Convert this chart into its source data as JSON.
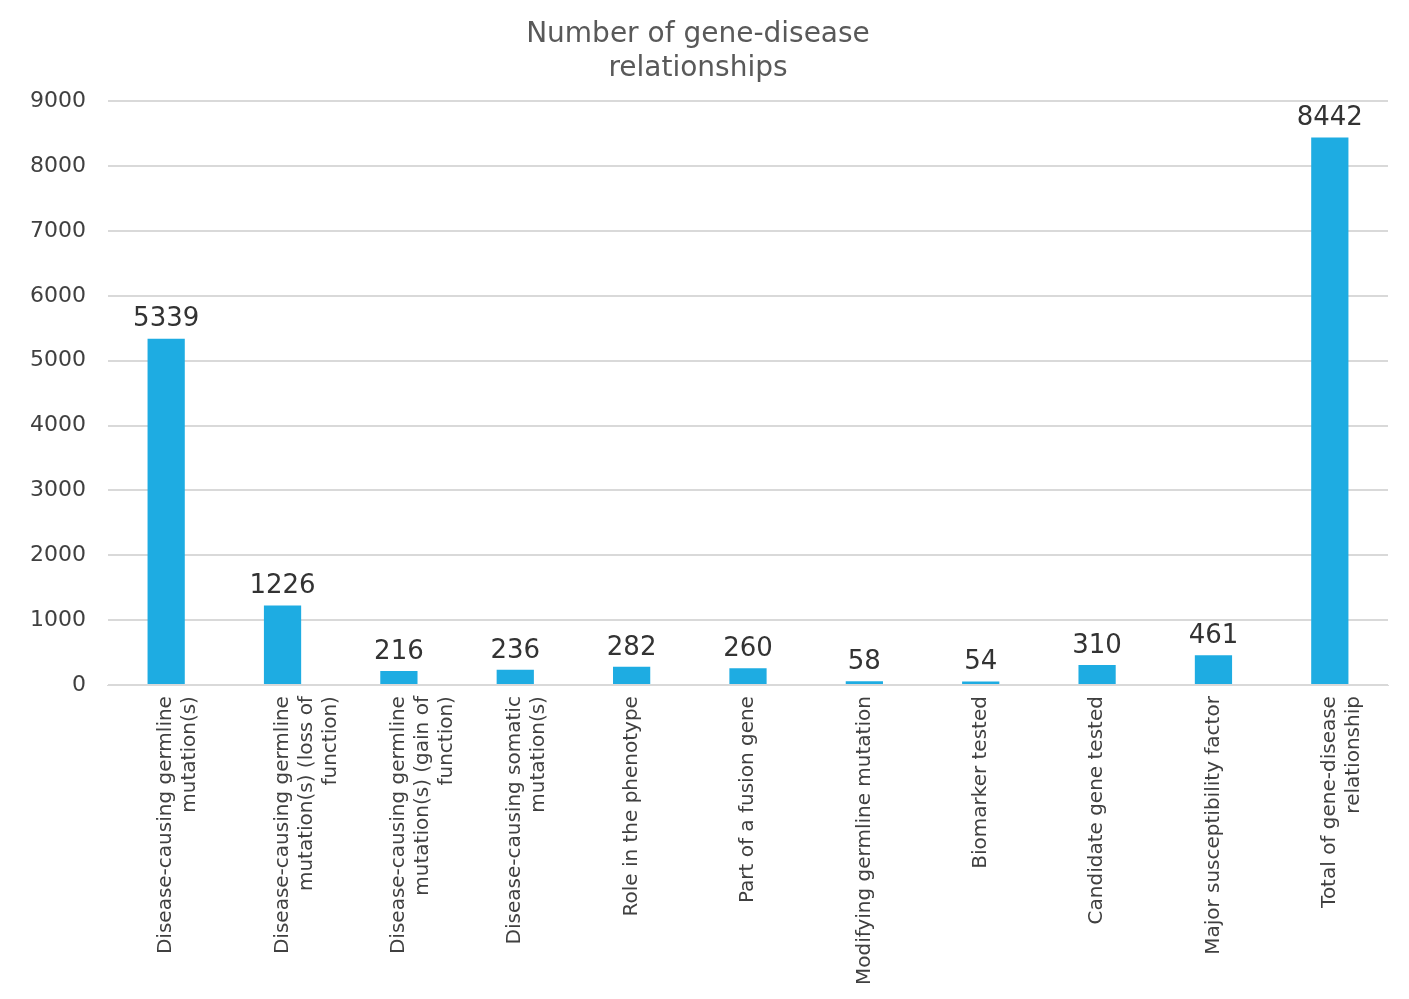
{
  "chart_data": {
    "type": "bar",
    "title": "Number of gene-disease relationships",
    "categories": [
      "Disease-causing germline mutation(s)",
      "Disease-causing germline mutation(s) (loss of function)",
      "Disease-causing germline mutation(s) (gain of function)",
      "Disease-causing somatic mutation(s)",
      "Role in the phenotype",
      "Part of a fusion gene",
      "Modifying germline mutation",
      "Biomarker tested",
      "Candidate gene tested",
      "Major susceptibility factor",
      "Total of gene-disease relationship"
    ],
    "values": [
      5339,
      1226,
      216,
      236,
      282,
      260,
      58,
      54,
      310,
      461,
      8442
    ],
    "color": "#1eace2",
    "ylim": [
      0,
      9000
    ],
    "yticks": [
      0,
      1000,
      2000,
      3000,
      4000,
      5000,
      6000,
      7000,
      8000,
      9000
    ],
    "grid": "y",
    "data_labels": true,
    "legend": false
  }
}
